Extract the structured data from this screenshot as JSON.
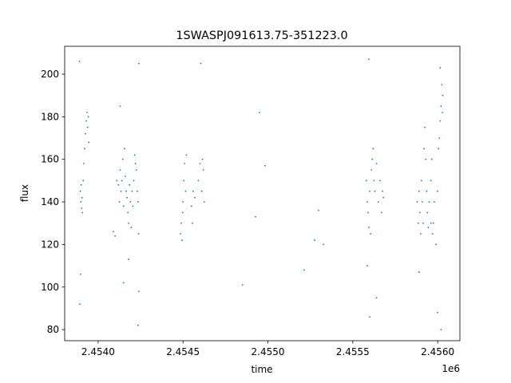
{
  "chart_data": {
    "type": "scatter",
    "title": "1SWASPJ091613.75-351223.0",
    "x_label": "time",
    "y_label": "flux",
    "x_offset_label": "1e6",
    "color": "#1f77b4",
    "x": [
      2453895,
      2453898,
      2453900,
      2453903,
      2453905,
      2453908,
      2453912,
      2453915,
      2453920,
      2453925,
      2453930,
      2453935,
      2453938,
      2453942,
      2453945,
      2453890,
      2453893,
      2453897,
      2454120,
      2454125,
      2454130,
      2454135,
      2454140,
      2454145,
      2454150,
      2454155,
      2454160,
      2454165,
      2454170,
      2454175,
      2454180,
      2454185,
      2454190,
      2454195,
      2454200,
      2454205,
      2454210,
      2454215,
      2454220,
      2454225,
      2454230,
      2454235,
      2454238,
      2454240,
      2454235,
      2454090,
      2454100,
      2454130,
      2454150,
      2454180,
      2454240,
      2454110,
      2454485,
      2454490,
      2454495,
      2454498,
      2454505,
      2454510,
      2454515,
      2454520,
      2454500,
      2454550,
      2454555,
      2454560,
      2454570,
      2454590,
      2454600,
      2454610,
      2454615,
      2454620,
      2454605,
      2454625,
      2454851,
      2454927,
      2454950,
      2454983,
      2455213,
      2455275,
      2455298,
      2455327,
      2455580,
      2455585,
      2455590,
      2455595,
      2455600,
      2455605,
      2455610,
      2455615,
      2455620,
      2455625,
      2455630,
      2455640,
      2455650,
      2455660,
      2455670,
      2455675,
      2455680,
      2455595,
      2455600,
      2455585,
      2455640,
      2455880,
      2455885,
      2455890,
      2455895,
      2455900,
      2455905,
      2455910,
      2455915,
      2455920,
      2455925,
      2455930,
      2455935,
      2455940,
      2455945,
      2455950,
      2455960,
      2455965,
      2455970,
      2455975,
      2455980,
      2455990,
      2456000,
      2456005,
      2456010,
      2456015,
      2456020,
      2456025,
      2456030,
      2456015,
      2456000,
      2455890,
      2456020,
      2455960,
      2456028
    ],
    "values": [
      145,
      140,
      148,
      137,
      142,
      135,
      150,
      158,
      165,
      172,
      178,
      182,
      175,
      180,
      168,
      206,
      92,
      106,
      148,
      140,
      155,
      145,
      150,
      160,
      138,
      165,
      152,
      145,
      142,
      135,
      130,
      148,
      140,
      128,
      145,
      138,
      150,
      162,
      158,
      155,
      145,
      140,
      125,
      205,
      82,
      126,
      124,
      185,
      102,
      113,
      98,
      150,
      125,
      130,
      122,
      135,
      150,
      158,
      145,
      162,
      140,
      138,
      130,
      145,
      142,
      150,
      158,
      145,
      160,
      155,
      205,
      140,
      101,
      133,
      182,
      157,
      108,
      122,
      136,
      120,
      150,
      140,
      135,
      128,
      145,
      125,
      155,
      160,
      165,
      150,
      145,
      158,
      140,
      150,
      135,
      145,
      142,
      207,
      86,
      110,
      95,
      140,
      130,
      145,
      135,
      125,
      150,
      140,
      130,
      165,
      175,
      160,
      145,
      135,
      128,
      140,
      150,
      160,
      125,
      130,
      140,
      120,
      145,
      165,
      170,
      178,
      185,
      195,
      190,
      203,
      88,
      107,
      80,
      130,
      182
    ],
    "xlim": [
      2453803,
      2456131
    ],
    "ylim": [
      74.8,
      213.1
    ],
    "xticks": [
      {
        "value": 2454000,
        "label": "2.4540"
      },
      {
        "value": 2454500,
        "label": "2.4545"
      },
      {
        "value": 2455000,
        "label": "2.4550"
      },
      {
        "value": 2455500,
        "label": "2.4555"
      },
      {
        "value": 2456000,
        "label": "2.4560"
      }
    ],
    "yticks": [
      80,
      100,
      120,
      140,
      160,
      180,
      200
    ]
  }
}
